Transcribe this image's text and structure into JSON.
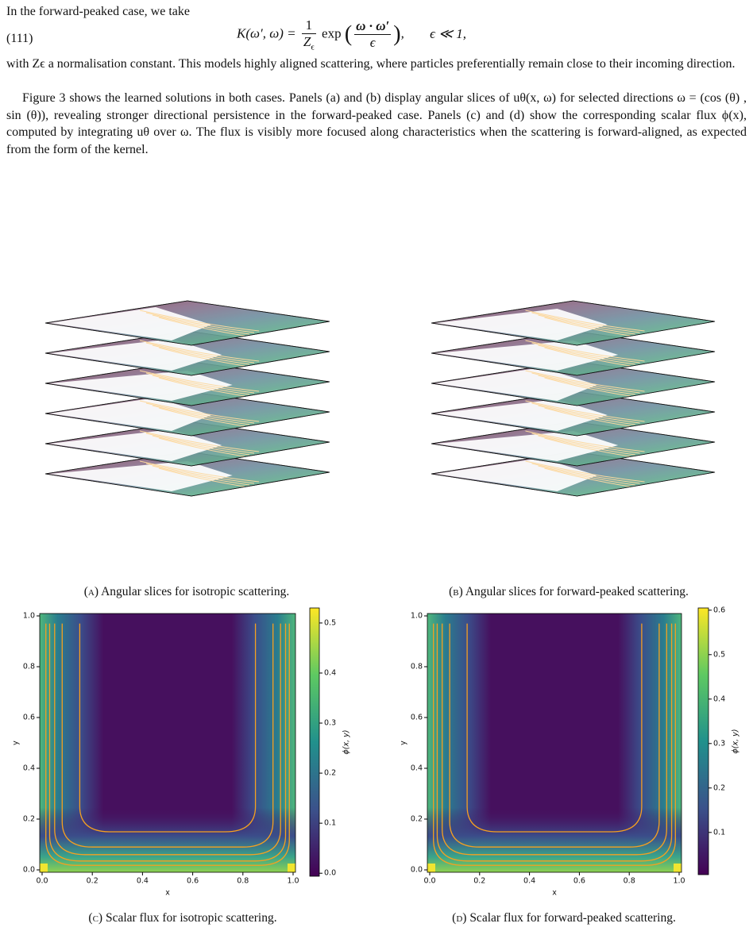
{
  "text": {
    "intro": "In the forward-peaked case, we take",
    "eq_number": "(111)",
    "equation": {
      "lhs": "K(ω′, ω) =",
      "frac1_num": "1",
      "frac1_den": "Z",
      "frac1_den_sub": "ϵ",
      "func": "exp",
      "frac2_num": "ω · ω′",
      "frac2_den": "ϵ",
      "condition": "ϵ ≪ 1,"
    },
    "p1": "with Zϵ a normalisation constant. This models highly aligned scattering, where particles preferentially remain close to their incoming direction.",
    "p2": "Figure 3 shows the learned solutions in both cases. Panels (a) and (b) display angular slices of uθ(x, ω) for selected directions ω = (cos (θ) , sin (θ)), revealing stronger directional persistence in the forward-peaked case. Panels (c) and (d) show the corresponding scalar flux ϕ(x), computed by integrating uθ over ω. The flux is visibly more focused along characteristics when the scattering is forward-aligned, as expected from the form of the kernel."
  },
  "figure": {
    "captions": [
      {
        "tag": "(a)",
        "text": "Angular slices for isotropic scattering."
      },
      {
        "tag": "(b)",
        "text": "Angular slices for forward-peaked scattering."
      },
      {
        "tag": "(c)",
        "text": "Scalar flux for isotropic scattering."
      },
      {
        "tag": "(d)",
        "text": "Scalar flux for forward-peaked scattering."
      }
    ],
    "heatmaps": [
      {
        "xlabel": "x",
        "ylabel": "y",
        "cbar_label": "ϕ(x, y)",
        "xlim": [
          0,
          1
        ],
        "ylim": [
          0,
          1
        ],
        "xticks": [
          {
            "value": 0,
            "label": "0.0"
          },
          0.2,
          0.4,
          0.6,
          0.8,
          {
            "value": 1,
            "label": "1.0"
          }
        ],
        "yticks": [
          {
            "value": 0,
            "label": "0.0"
          },
          0.2,
          0.4,
          0.6,
          0.8,
          {
            "value": 1,
            "label": "1.0"
          }
        ],
        "cbar_lim": [
          -0.006,
          0.53
        ],
        "cbar_ticks": [
          {
            "value": 0,
            "label": "0.0"
          },
          0.1,
          0.2,
          0.3,
          0.4,
          0.5
        ]
      },
      {
        "xlabel": "x",
        "ylabel": "y",
        "cbar_label": "ϕ(x, y)",
        "xlim": [
          0,
          1
        ],
        "ylim": [
          0,
          1
        ],
        "xticks": [
          {
            "value": 0,
            "label": "0.0"
          },
          0.2,
          0.4,
          0.6,
          0.8,
          {
            "value": 1,
            "label": "1.0"
          }
        ],
        "yticks": [
          {
            "value": 0,
            "label": "0.0"
          },
          0.2,
          0.4,
          0.6,
          0.8,
          {
            "value": 1,
            "label": "1.0"
          }
        ],
        "cbar_lim": [
          0.005,
          0.605
        ],
        "cbar_ticks": [
          0.1,
          0.2,
          0.3,
          0.4,
          0.5,
          0.6
        ]
      }
    ]
  }
}
